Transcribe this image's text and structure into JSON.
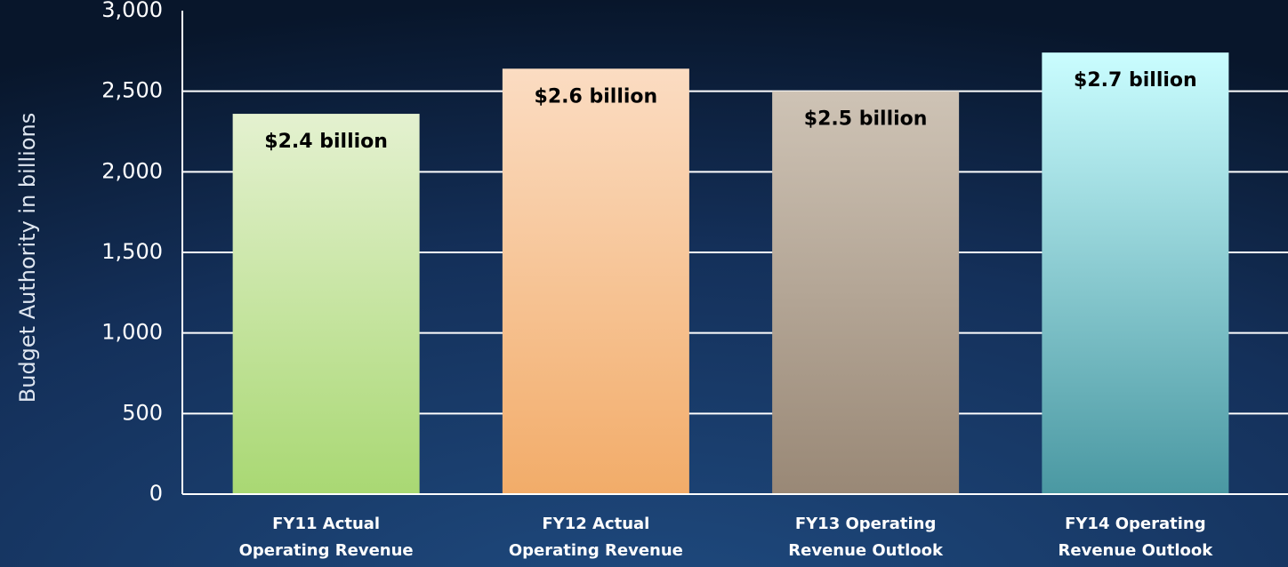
{
  "chart_data": {
    "type": "bar",
    "y_axis_label": "Budget Authority in billions",
    "categories": [
      [
        "FY11 Actual",
        "Operating Revenue"
      ],
      [
        "FY12 Actual",
        "Operating Revenue"
      ],
      [
        "FY13 Operating",
        "Revenue Outlook"
      ],
      [
        "FY14 Operating",
        "Revenue Outlook"
      ]
    ],
    "values": [
      2360,
      2640,
      2500,
      2740
    ],
    "value_labels": [
      "$2.4 billion",
      "$2.6 billion",
      "$2.5 billion",
      "$2.7 billion"
    ],
    "colors": [
      [
        "#e4f1d0",
        "#a9d873"
      ],
      [
        "#fbdcc2",
        "#f2ac69"
      ],
      [
        "#cec3b5",
        "#998876"
      ],
      [
        "#cafdff",
        "#4a98a2"
      ]
    ],
    "ylim": [
      0,
      3000
    ],
    "yticks": [
      0,
      500,
      {
        "value": 1000,
        "label": "1,000"
      },
      {
        "value": 1500,
        "label": "1,500"
      },
      {
        "value": 2000,
        "label": "2,000"
      },
      {
        "value": 2500,
        "label": "2,500"
      },
      {
        "value": 3000,
        "label": "3,000"
      }
    ],
    "grid": true
  }
}
